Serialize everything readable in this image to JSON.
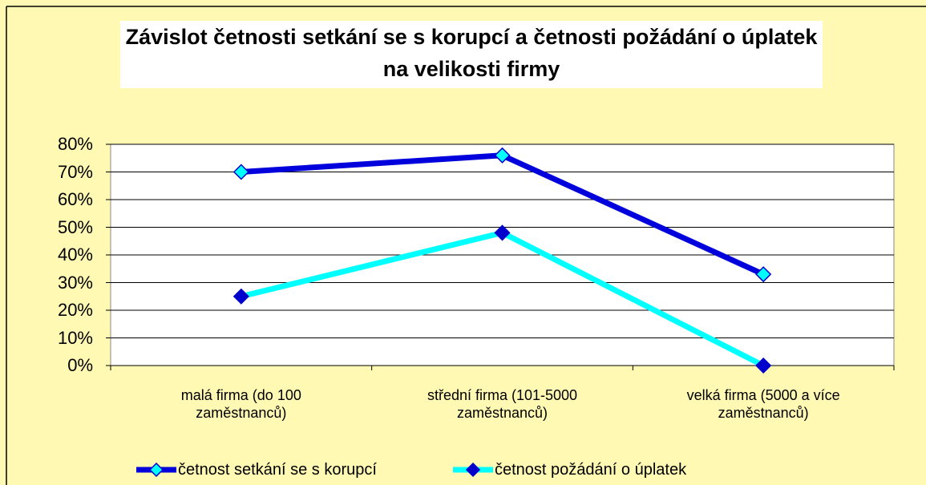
{
  "chart_data": {
    "type": "line",
    "title": "Závislot četnosti setkání se s korupcí a četnosti požádání o úplatek na velikosti firmy",
    "categories": [
      "malá firma (do 100 zaměstnanců)",
      "střední firma (101-5000 zaměstnanců)",
      "velká firma (5000 a více zaměstnanců)"
    ],
    "series": [
      {
        "name": "četnost setkání se s korupcí",
        "color": "#0000dd",
        "marker_color": "#00ffff",
        "values": [
          70,
          76,
          33
        ]
      },
      {
        "name": "četnost požádání o úplatek",
        "color": "#00ffff",
        "marker_color": "#0000cc",
        "values": [
          25,
          48,
          0
        ]
      }
    ],
    "ylim": [
      0,
      80
    ],
    "yticks": [
      {
        "value": 0,
        "label": "0%"
      },
      {
        "value": 10,
        "label": "10%"
      },
      {
        "value": 20,
        "label": "20%"
      },
      {
        "value": 30,
        "label": "30%"
      },
      {
        "value": 40,
        "label": "40%"
      },
      {
        "value": 50,
        "label": "50%"
      },
      {
        "value": 60,
        "label": "60%"
      },
      {
        "value": 70,
        "label": "70%"
      },
      {
        "value": 80,
        "label": "80%"
      }
    ],
    "grid": true,
    "legend": "bottom"
  }
}
